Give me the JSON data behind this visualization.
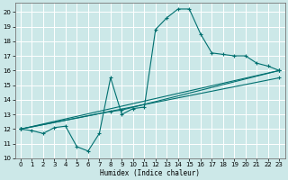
{
  "xlabel": "Humidex (Indice chaleur)",
  "bg_color": "#cce8e8",
  "grid_color": "#ffffff",
  "line_color": "#007070",
  "xlim": [
    -0.5,
    23.5
  ],
  "ylim": [
    10,
    20.6
  ],
  "xticks": [
    0,
    1,
    2,
    3,
    4,
    5,
    6,
    7,
    8,
    9,
    10,
    11,
    12,
    13,
    14,
    15,
    16,
    17,
    18,
    19,
    20,
    21,
    22,
    23
  ],
  "yticks": [
    10,
    11,
    12,
    13,
    14,
    15,
    16,
    17,
    18,
    19,
    20
  ],
  "line1_x": [
    0,
    1,
    2,
    3,
    4,
    5,
    6,
    7,
    8,
    9,
    10,
    11,
    12,
    13,
    14,
    15,
    16,
    17,
    18,
    19,
    20,
    21,
    22,
    23
  ],
  "line1_y": [
    12.0,
    11.9,
    11.7,
    12.1,
    12.2,
    10.8,
    10.5,
    11.7,
    15.5,
    13.0,
    13.4,
    13.5,
    18.8,
    19.6,
    20.2,
    20.2,
    18.5,
    17.2,
    17.1,
    17.0,
    17.0,
    16.5,
    16.3,
    16.0
  ],
  "line2_x": [
    0,
    23
  ],
  "line2_y": [
    12.0,
    16.0
  ],
  "line3_x": [
    0,
    23
  ],
  "line3_y": [
    12.0,
    15.5
  ],
  "line4_x": [
    0,
    8,
    9,
    23
  ],
  "line4_y": [
    12.0,
    13.2,
    13.3,
    16.0
  ]
}
